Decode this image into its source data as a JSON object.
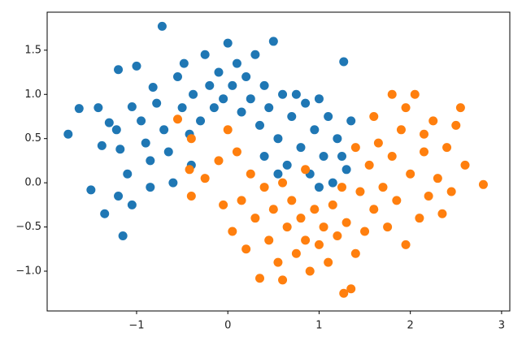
{
  "chart_data": {
    "type": "scatter",
    "xlim": [
      -1.98,
      3.09
    ],
    "ylim": [
      -1.45,
      1.93
    ],
    "xticks": [
      {
        "value": -1,
        "label": "−1"
      },
      0,
      1,
      2,
      3
    ],
    "yticks": [
      {
        "value": -1.0,
        "label": "−1.0"
      },
      {
        "value": -0.5,
        "label": "−0.5"
      },
      {
        "value": 0.0,
        "label": "0.0"
      },
      {
        "value": 0.5,
        "label": "0.5"
      },
      {
        "value": 1.0,
        "label": "1.0"
      },
      1.5
    ],
    "series": [
      {
        "color": "#1f77b4",
        "x": [
          -1.75,
          -1.63,
          -1.5,
          -1.35,
          -1.15,
          -1.42,
          -1.38,
          -1.3,
          -1.22,
          -1.18,
          -1.2,
          -1.05,
          -1.0,
          -0.95,
          -0.9,
          -0.85,
          -0.82,
          -0.78,
          -0.72,
          -0.7,
          -0.65,
          -0.6,
          -0.55,
          -0.5,
          -0.48,
          -0.42,
          -0.38,
          -0.3,
          -0.25,
          -0.2,
          -0.15,
          -0.1,
          -0.05,
          0.0,
          0.05,
          0.1,
          0.15,
          0.2,
          0.25,
          0.3,
          0.35,
          0.4,
          0.45,
          0.5,
          0.55,
          0.6,
          0.65,
          0.7,
          0.75,
          0.8,
          0.85,
          0.9,
          0.95,
          1.0,
          1.05,
          1.1,
          1.15,
          1.2,
          1.27,
          1.3,
          1.35,
          -1.1,
          -1.05,
          -1.2,
          -0.85,
          -0.4,
          0.4,
          0.55,
          1.0,
          1.25
        ],
        "values": [
          0.55,
          0.84,
          -0.08,
          -0.35,
          -0.6,
          0.85,
          0.42,
          0.68,
          0.6,
          0.38,
          1.28,
          0.86,
          1.32,
          0.7,
          0.45,
          0.25,
          1.08,
          0.9,
          1.77,
          0.6,
          0.35,
          0.0,
          1.2,
          0.85,
          1.35,
          0.55,
          1.0,
          0.7,
          1.45,
          1.1,
          0.85,
          1.25,
          0.95,
          1.58,
          1.1,
          1.35,
          0.8,
          1.2,
          0.95,
          1.45,
          0.65,
          1.1,
          0.85,
          1.6,
          0.5,
          1.0,
          0.2,
          0.75,
          1.0,
          0.4,
          0.9,
          0.1,
          0.6,
          0.95,
          0.3,
          0.75,
          0.0,
          0.5,
          1.37,
          0.15,
          0.7,
          0.1,
          -0.25,
          -0.15,
          -0.05,
          0.2,
          0.3,
          0.1,
          -0.05,
          0.3
        ]
      },
      {
        "color": "#ff7f0e",
        "x": [
          -0.55,
          -0.4,
          -0.4,
          -0.42,
          -0.25,
          -0.1,
          -0.05,
          0.0,
          0.05,
          0.1,
          0.15,
          0.2,
          0.25,
          0.3,
          0.35,
          0.4,
          0.45,
          0.5,
          0.55,
          0.6,
          0.6,
          0.65,
          0.7,
          0.75,
          0.8,
          0.85,
          0.9,
          0.95,
          1.0,
          1.05,
          1.1,
          1.15,
          1.2,
          1.27,
          1.3,
          1.35,
          1.4,
          1.45,
          1.5,
          1.55,
          1.6,
          1.65,
          1.7,
          1.75,
          1.8,
          1.8,
          1.85,
          1.9,
          1.95,
          2.0,
          2.05,
          2.1,
          2.15,
          2.2,
          2.25,
          2.3,
          2.35,
          2.4,
          2.45,
          2.5,
          2.55,
          2.6,
          2.8,
          1.6,
          1.95,
          2.15,
          1.4,
          1.25,
          0.85
        ],
        "values": [
          0.72,
          0.5,
          -0.15,
          0.15,
          0.05,
          0.25,
          -0.25,
          0.6,
          -0.55,
          0.35,
          -0.2,
          -0.75,
          0.1,
          -0.4,
          -1.08,
          -0.05,
          -0.65,
          -0.3,
          -0.9,
          -1.1,
          0.0,
          -0.5,
          -0.2,
          -0.8,
          -0.4,
          -0.65,
          -1.0,
          -0.3,
          -0.7,
          -0.5,
          -0.9,
          -0.25,
          -0.6,
          -1.25,
          -0.45,
          -1.2,
          -0.8,
          -0.1,
          -0.55,
          0.2,
          -0.3,
          0.45,
          -0.05,
          -0.5,
          1.0,
          0.3,
          -0.2,
          0.6,
          -0.7,
          0.1,
          1.0,
          -0.4,
          0.35,
          -0.15,
          0.7,
          0.05,
          -0.35,
          0.4,
          -0.1,
          0.65,
          0.85,
          0.2,
          -0.02,
          0.75,
          0.85,
          0.55,
          0.4,
          -0.05,
          0.15
        ]
      }
    ]
  }
}
